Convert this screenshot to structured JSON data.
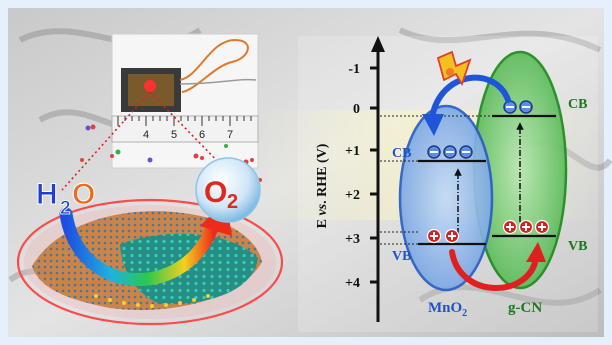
{
  "colors": {
    "frame": "#e6effc",
    "ruler": "#f2f2f2",
    "mno2_fill": "#9ec3f2",
    "gcn_fill": "#8fd48a",
    "cb_vb_blue": "#1f54c8",
    "cb_vb_green": "#1a7a1a",
    "hole": "#d42020",
    "electron": "#5b8fe6",
    "o2_red": "#e0281e",
    "h2o_orange": "#f06a1c"
  },
  "photo": {
    "ruler_numbers": [
      "4",
      "5",
      "6",
      "7"
    ]
  },
  "molecules": {
    "h2o_main": "H",
    "h2o_sub": "2",
    "h2o_o": "O",
    "o2_main": "O",
    "o2_sub": "2"
  },
  "axis": {
    "label_e": "E ",
    "label_vs": "vs",
    "label_rhe": ". RHE (V)",
    "ticks": [
      "-1",
      "0",
      "+1",
      "+2",
      "+3",
      "+4"
    ]
  },
  "bands": {
    "mno2_cb_label": "CB",
    "mno2_vb_label": "VB",
    "gcn_cb_label": "CB",
    "gcn_vb_label": "VB",
    "mno2_name_main": "MnO",
    "mno2_name_sub": "2",
    "gcn_name": "g-CN"
  },
  "icons": [
    "lightning-icon",
    "electron-icon",
    "hole-icon"
  ]
}
